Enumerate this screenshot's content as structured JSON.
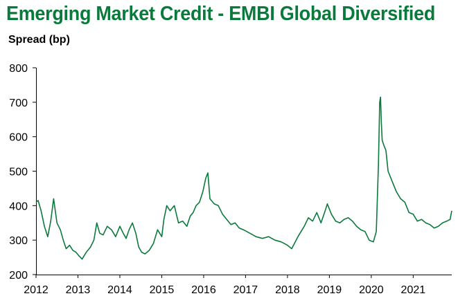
{
  "chart_data": {
    "type": "line",
    "title": "Emerging Market Credit - EMBI Global Diversified",
    "ylabel": "Spread (bp)",
    "xlabel": "",
    "ylim": [
      200,
      800
    ],
    "xlim": [
      2012.0,
      2021.92
    ],
    "y_ticks": [
      "200",
      "300",
      "400",
      "500",
      "600",
      "700",
      "800"
    ],
    "x_ticks": [
      "2012",
      "2013",
      "2014",
      "2015",
      "2016",
      "2017",
      "2018",
      "2019",
      "2020",
      "2021"
    ],
    "grid": false,
    "legend": "none",
    "line_color": "#0a7a3c",
    "series": [
      {
        "x": [
          2012.0,
          2012.05,
          2012.12,
          2012.2,
          2012.28,
          2012.35,
          2012.42,
          2012.5,
          2012.58,
          2012.65,
          2012.72,
          2012.8,
          2012.88,
          2012.95,
          2013.02,
          2013.1,
          2013.2,
          2013.3,
          2013.38,
          2013.45,
          2013.52,
          2013.6,
          2013.7,
          2013.8,
          2013.9,
          2014.0,
          2014.08,
          2014.15,
          2014.22,
          2014.3,
          2014.38,
          2014.45,
          2014.52,
          2014.6,
          2014.7,
          2014.8,
          2014.9,
          2015.0,
          2015.05,
          2015.12,
          2015.2,
          2015.3,
          2015.4,
          2015.5,
          2015.6,
          2015.68,
          2015.75,
          2015.82,
          2015.9,
          2015.98,
          2016.05,
          2016.1,
          2016.15,
          2016.25,
          2016.35,
          2016.45,
          2016.55,
          2016.65,
          2016.75,
          2016.85,
          2016.95,
          2017.1,
          2017.25,
          2017.4,
          2017.55,
          2017.7,
          2017.85,
          2018.0,
          2018.1,
          2018.25,
          2018.4,
          2018.5,
          2018.6,
          2018.7,
          2018.8,
          2018.9,
          2018.95,
          2019.05,
          2019.15,
          2019.25,
          2019.35,
          2019.45,
          2019.55,
          2019.65,
          2019.75,
          2019.85,
          2019.95,
          2020.05,
          2020.12,
          2020.17,
          2020.2,
          2020.22,
          2020.24,
          2020.26,
          2020.3,
          2020.35,
          2020.4,
          2020.5,
          2020.6,
          2020.7,
          2020.8,
          2020.9,
          2021.0,
          2021.1,
          2021.2,
          2021.3,
          2021.4,
          2021.5,
          2021.6,
          2021.7,
          2021.8,
          2021.88,
          2021.92
        ],
        "values": [
          410,
          415,
          385,
          340,
          310,
          355,
          420,
          350,
          330,
          300,
          275,
          285,
          270,
          265,
          255,
          245,
          265,
          280,
          300,
          350,
          320,
          315,
          340,
          330,
          310,
          340,
          320,
          305,
          330,
          350,
          320,
          280,
          265,
          260,
          270,
          290,
          330,
          310,
          360,
          400,
          385,
          400,
          350,
          355,
          340,
          370,
          380,
          400,
          410,
          440,
          480,
          495,
          420,
          405,
          400,
          375,
          360,
          345,
          350,
          335,
          330,
          320,
          310,
          305,
          310,
          300,
          295,
          285,
          275,
          310,
          340,
          365,
          355,
          380,
          350,
          385,
          405,
          375,
          355,
          350,
          360,
          365,
          355,
          340,
          330,
          325,
          300,
          295,
          325,
          520,
          700,
          715,
          640,
          590,
          575,
          560,
          500,
          470,
          440,
          420,
          410,
          380,
          375,
          355,
          360,
          350,
          345,
          335,
          340,
          350,
          355,
          360,
          385
        ]
      }
    ]
  }
}
